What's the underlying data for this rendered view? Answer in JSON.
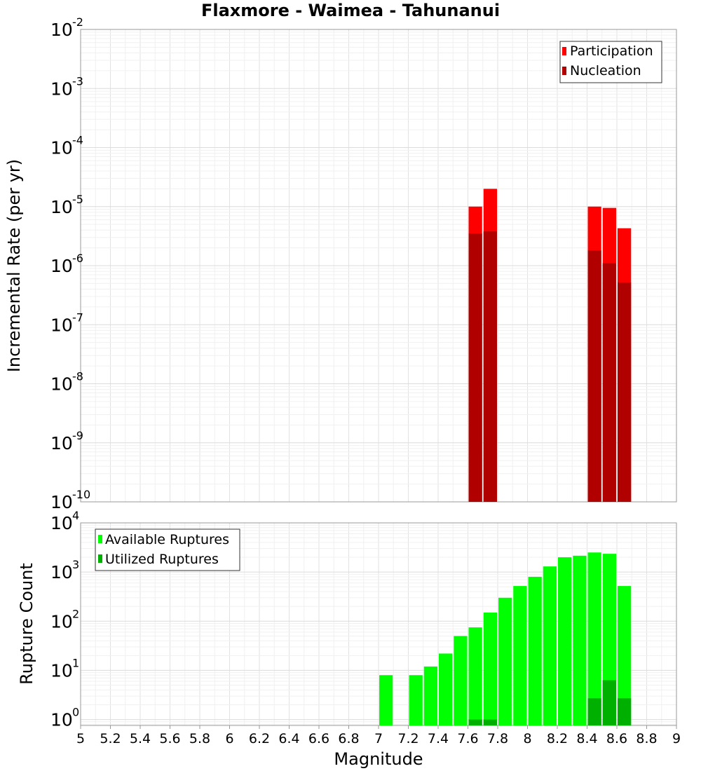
{
  "title": "Flaxmore - Waimea - Tahunanui",
  "chart_data": [
    {
      "type": "bar",
      "id": "rate",
      "ylabel": "Incremental Rate (per yr)",
      "yscale": "log",
      "ylim_exp": [
        -10,
        -2
      ],
      "ytick_base": "10",
      "ytick_exps": [
        "-10",
        "-9",
        "-8",
        "-7",
        "-6",
        "-5",
        "-4",
        "-3",
        "-2"
      ],
      "legend_position": "top-right",
      "series": [
        {
          "name": "Participation",
          "color": "#ff0000",
          "x": [
            7.65,
            7.75,
            8.45,
            8.55,
            8.65
          ],
          "values": [
            1e-05,
            2e-05,
            1e-05,
            9.5e-06,
            4.3e-06
          ]
        },
        {
          "name": "Nucleation",
          "color": "#b00000",
          "x": [
            7.65,
            7.75,
            8.45,
            8.55,
            8.65
          ],
          "values": [
            3.5e-06,
            3.8e-06,
            1.8e-06,
            1.1e-06,
            5.2e-07
          ]
        }
      ]
    },
    {
      "type": "bar",
      "id": "count",
      "ylabel": "Rupture Count",
      "xlabel": "Magnitude",
      "yscale": "log",
      "ylim_exp": [
        -0.12,
        4
      ],
      "ytick_base": "10",
      "ytick_exps": [
        "0",
        "1",
        "2",
        "3",
        "4"
      ],
      "legend_position": "top-left",
      "xlim": [
        5,
        9
      ],
      "xticks": [
        "5",
        "5.2",
        "5.4",
        "5.6",
        "5.8",
        "6",
        "6.2",
        "6.4",
        "6.6",
        "6.8",
        "7",
        "7.2",
        "7.4",
        "7.6",
        "7.8",
        "8",
        "8.2",
        "8.4",
        "8.6",
        "8.8",
        "9"
      ],
      "series": [
        {
          "name": "Available Ruptures",
          "color": "#00ff00",
          "x": [
            7.05,
            7.25,
            7.35,
            7.45,
            7.55,
            7.65,
            7.75,
            7.85,
            7.95,
            8.05,
            8.15,
            8.25,
            8.35,
            8.45,
            8.55,
            8.65
          ],
          "values": [
            8,
            8,
            12,
            22,
            50,
            75,
            150,
            300,
            520,
            800,
            1300,
            2000,
            2150,
            2500,
            2350,
            520
          ]
        },
        {
          "name": "Utilized Ruptures",
          "color": "#00b000",
          "x": [
            7.65,
            7.75,
            8.45,
            8.55,
            8.65
          ],
          "values": [
            1,
            1,
            2.7,
            6.3,
            2.7
          ]
        }
      ]
    }
  ]
}
